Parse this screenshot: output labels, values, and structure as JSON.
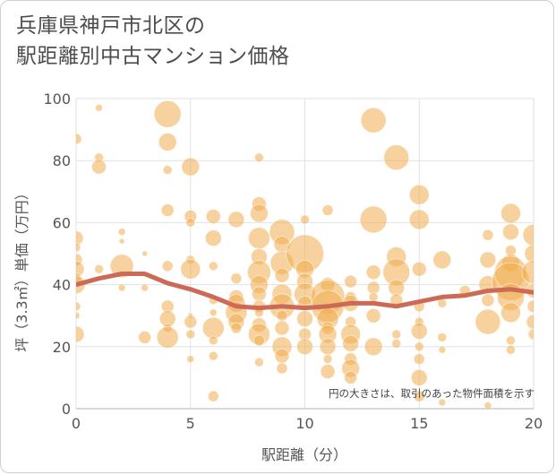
{
  "title_line1": "兵庫県神戸市北区の",
  "title_line2": "駅距離別中古マンション価格",
  "colors": {
    "bubble": "#f0ad4e",
    "trend": "#cd6a57",
    "grid": "#dde3ea",
    "background": "#ffffff"
  },
  "chart_data": {
    "type": "scatter",
    "xlabel": "駅距離（分）",
    "ylabel": "坪（3.3㎡）単価（万円）",
    "xlim": [
      0,
      20
    ],
    "ylim": [
      0,
      100
    ],
    "xticks": [
      0,
      5,
      10,
      15,
      20
    ],
    "yticks": [
      0,
      20,
      40,
      60,
      80,
      100
    ],
    "grid": true,
    "annotation": "円の大きさは、取引のあった物件面積を示す",
    "trend": {
      "x": [
        0,
        1,
        2,
        3,
        4,
        5,
        6,
        7,
        8,
        9,
        10,
        11,
        12,
        13,
        14,
        15,
        16,
        17,
        18,
        19,
        20
      ],
      "y": [
        40,
        42,
        43.5,
        43.5,
        40.5,
        38.5,
        36,
        33,
        32.5,
        33,
        32.5,
        33,
        34,
        34,
        33,
        34.5,
        36,
        36.5,
        38,
        38.5,
        37.5
      ]
    },
    "points": [
      {
        "x": 0,
        "y": 87,
        "s": 6
      },
      {
        "x": 0,
        "y": 55,
        "s": 8
      },
      {
        "x": 0,
        "y": 52,
        "s": 5
      },
      {
        "x": 0,
        "y": 48,
        "s": 7
      },
      {
        "x": 0,
        "y": 45,
        "s": 9
      },
      {
        "x": 0,
        "y": 42,
        "s": 6
      },
      {
        "x": 0,
        "y": 40,
        "s": 10
      },
      {
        "x": 0,
        "y": 33,
        "s": 5
      },
      {
        "x": 0,
        "y": 30,
        "s": 4
      },
      {
        "x": 0,
        "y": 24,
        "s": 9
      },
      {
        "x": 1,
        "y": 97,
        "s": 4
      },
      {
        "x": 1,
        "y": 81,
        "s": 5
      },
      {
        "x": 1,
        "y": 78,
        "s": 8
      },
      {
        "x": 1,
        "y": 45,
        "s": 5
      },
      {
        "x": 2,
        "y": 57,
        "s": 4
      },
      {
        "x": 2,
        "y": 54,
        "s": 3
      },
      {
        "x": 2,
        "y": 46,
        "s": 13
      },
      {
        "x": 2,
        "y": 39,
        "s": 4
      },
      {
        "x": 3,
        "y": 50,
        "s": 3
      },
      {
        "x": 3,
        "y": 39,
        "s": 4
      },
      {
        "x": 3,
        "y": 23,
        "s": 7
      },
      {
        "x": 4,
        "y": 95,
        "s": 15
      },
      {
        "x": 4,
        "y": 86,
        "s": 10
      },
      {
        "x": 4,
        "y": 77,
        "s": 5
      },
      {
        "x": 4,
        "y": 64,
        "s": 7
      },
      {
        "x": 4,
        "y": 46,
        "s": 6
      },
      {
        "x": 4,
        "y": 33,
        "s": 7
      },
      {
        "x": 4,
        "y": 29,
        "s": 9
      },
      {
        "x": 4,
        "y": 26,
        "s": 5
      },
      {
        "x": 4,
        "y": 23,
        "s": 12
      },
      {
        "x": 5,
        "y": 78,
        "s": 10
      },
      {
        "x": 5,
        "y": 62,
        "s": 7
      },
      {
        "x": 5,
        "y": 60,
        "s": 5
      },
      {
        "x": 5,
        "y": 48,
        "s": 5
      },
      {
        "x": 5,
        "y": 45,
        "s": 11
      },
      {
        "x": 5,
        "y": 30,
        "s": 3
      },
      {
        "x": 5,
        "y": 28,
        "s": 7
      },
      {
        "x": 5,
        "y": 24,
        "s": 5
      },
      {
        "x": 5,
        "y": 16,
        "s": 4
      },
      {
        "x": 6,
        "y": 62,
        "s": 8
      },
      {
        "x": 6,
        "y": 55,
        "s": 9
      },
      {
        "x": 6,
        "y": 46,
        "s": 5
      },
      {
        "x": 6,
        "y": 35,
        "s": 5
      },
      {
        "x": 6,
        "y": 31,
        "s": 4
      },
      {
        "x": 6,
        "y": 26,
        "s": 12
      },
      {
        "x": 6,
        "y": 22,
        "s": 5
      },
      {
        "x": 6,
        "y": 17,
        "s": 5
      },
      {
        "x": 6,
        "y": 4,
        "s": 6
      },
      {
        "x": 7,
        "y": 61,
        "s": 9
      },
      {
        "x": 7,
        "y": 42,
        "s": 6
      },
      {
        "x": 7,
        "y": 36,
        "s": 8
      },
      {
        "x": 7,
        "y": 34,
        "s": 10
      },
      {
        "x": 7,
        "y": 31,
        "s": 12
      },
      {
        "x": 7,
        "y": 28,
        "s": 9
      },
      {
        "x": 7,
        "y": 26,
        "s": 6
      },
      {
        "x": 8,
        "y": 81,
        "s": 5
      },
      {
        "x": 8,
        "y": 66,
        "s": 8
      },
      {
        "x": 8,
        "y": 63,
        "s": 10
      },
      {
        "x": 8,
        "y": 55,
        "s": 12
      },
      {
        "x": 8,
        "y": 49,
        "s": 9
      },
      {
        "x": 8,
        "y": 44,
        "s": 13
      },
      {
        "x": 8,
        "y": 40,
        "s": 10
      },
      {
        "x": 8,
        "y": 37,
        "s": 8
      },
      {
        "x": 8,
        "y": 33,
        "s": 7
      },
      {
        "x": 8,
        "y": 31,
        "s": 5
      },
      {
        "x": 8,
        "y": 27,
        "s": 8
      },
      {
        "x": 8,
        "y": 24,
        "s": 12
      },
      {
        "x": 8,
        "y": 22,
        "s": 6
      },
      {
        "x": 8,
        "y": 15,
        "s": 5
      },
      {
        "x": 9,
        "y": 57,
        "s": 14
      },
      {
        "x": 9,
        "y": 53,
        "s": 9
      },
      {
        "x": 9,
        "y": 47,
        "s": 13
      },
      {
        "x": 9,
        "y": 43,
        "s": 8
      },
      {
        "x": 9,
        "y": 37,
        "s": 11
      },
      {
        "x": 9,
        "y": 33,
        "s": 14
      },
      {
        "x": 9,
        "y": 30,
        "s": 6
      },
      {
        "x": 9,
        "y": 26,
        "s": 8
      },
      {
        "x": 9,
        "y": 20,
        "s": 11
      },
      {
        "x": 9,
        "y": 17,
        "s": 8
      },
      {
        "x": 9,
        "y": 13,
        "s": 6
      },
      {
        "x": 10,
        "y": 61,
        "s": 5
      },
      {
        "x": 10,
        "y": 50,
        "s": 21
      },
      {
        "x": 10,
        "y": 45,
        "s": 10
      },
      {
        "x": 10,
        "y": 41,
        "s": 9
      },
      {
        "x": 10,
        "y": 37,
        "s": 12
      },
      {
        "x": 10,
        "y": 34,
        "s": 8
      },
      {
        "x": 10,
        "y": 29,
        "s": 9
      },
      {
        "x": 10,
        "y": 24,
        "s": 7
      },
      {
        "x": 10,
        "y": 20,
        "s": 9
      },
      {
        "x": 11,
        "y": 64,
        "s": 6
      },
      {
        "x": 11,
        "y": 40,
        "s": 8
      },
      {
        "x": 11,
        "y": 36,
        "s": 19
      },
      {
        "x": 11,
        "y": 33,
        "s": 18
      },
      {
        "x": 11,
        "y": 29,
        "s": 12
      },
      {
        "x": 11,
        "y": 26,
        "s": 7
      },
      {
        "x": 11,
        "y": 24,
        "s": 10
      },
      {
        "x": 11,
        "y": 20,
        "s": 9
      },
      {
        "x": 11,
        "y": 16,
        "s": 5
      },
      {
        "x": 11,
        "y": 12,
        "s": 8
      },
      {
        "x": 12,
        "y": 41,
        "s": 7
      },
      {
        "x": 12,
        "y": 36,
        "s": 6
      },
      {
        "x": 12,
        "y": 34,
        "s": 9
      },
      {
        "x": 12,
        "y": 28,
        "s": 6
      },
      {
        "x": 12,
        "y": 24,
        "s": 11
      },
      {
        "x": 12,
        "y": 21,
        "s": 9
      },
      {
        "x": 12,
        "y": 16,
        "s": 7
      },
      {
        "x": 12,
        "y": 13,
        "s": 10
      },
      {
        "x": 12,
        "y": 10,
        "s": 7
      },
      {
        "x": 13,
        "y": 93,
        "s": 14
      },
      {
        "x": 13,
        "y": 61,
        "s": 15
      },
      {
        "x": 13,
        "y": 44,
        "s": 8
      },
      {
        "x": 13,
        "y": 39,
        "s": 7
      },
      {
        "x": 13,
        "y": 36,
        "s": 5
      },
      {
        "x": 13,
        "y": 30,
        "s": 8
      },
      {
        "x": 13,
        "y": 20,
        "s": 10
      },
      {
        "x": 14,
        "y": 81,
        "s": 14
      },
      {
        "x": 14,
        "y": 49,
        "s": 11
      },
      {
        "x": 14,
        "y": 44,
        "s": 15
      },
      {
        "x": 14,
        "y": 39,
        "s": 9
      },
      {
        "x": 14,
        "y": 35,
        "s": 7
      },
      {
        "x": 14,
        "y": 24,
        "s": 5
      },
      {
        "x": 14,
        "y": 21,
        "s": 5
      },
      {
        "x": 15,
        "y": 69,
        "s": 11
      },
      {
        "x": 15,
        "y": 61,
        "s": 11
      },
      {
        "x": 15,
        "y": 45,
        "s": 8
      },
      {
        "x": 15,
        "y": 33,
        "s": 6
      },
      {
        "x": 15,
        "y": 28,
        "s": 5
      },
      {
        "x": 15,
        "y": 25,
        "s": 9
      },
      {
        "x": 15,
        "y": 20,
        "s": 5
      },
      {
        "x": 15,
        "y": 16,
        "s": 6
      },
      {
        "x": 15,
        "y": 10,
        "s": 9
      },
      {
        "x": 15,
        "y": 4,
        "s": 6
      },
      {
        "x": 16,
        "y": 48,
        "s": 10
      },
      {
        "x": 16,
        "y": 34,
        "s": 5
      },
      {
        "x": 16,
        "y": 23,
        "s": 5
      },
      {
        "x": 16,
        "y": 19,
        "s": 4
      },
      {
        "x": 16,
        "y": 2,
        "s": 4
      },
      {
        "x": 17,
        "y": 38,
        "s": 6
      },
      {
        "x": 18,
        "y": 56,
        "s": 6
      },
      {
        "x": 18,
        "y": 48,
        "s": 9
      },
      {
        "x": 18,
        "y": 40,
        "s": 10
      },
      {
        "x": 18,
        "y": 35,
        "s": 7
      },
      {
        "x": 18,
        "y": 28,
        "s": 14
      },
      {
        "x": 18,
        "y": 1,
        "s": 4
      },
      {
        "x": 19,
        "y": 63,
        "s": 11
      },
      {
        "x": 19,
        "y": 57,
        "s": 9
      },
      {
        "x": 19,
        "y": 51,
        "s": 6
      },
      {
        "x": 19,
        "y": 47,
        "s": 10
      },
      {
        "x": 19,
        "y": 44,
        "s": 18
      },
      {
        "x": 19,
        "y": 41,
        "s": 21
      },
      {
        "x": 19,
        "y": 36,
        "s": 15
      },
      {
        "x": 19,
        "y": 31,
        "s": 11
      },
      {
        "x": 19,
        "y": 22,
        "s": 5
      },
      {
        "x": 19,
        "y": 19,
        "s": 5
      },
      {
        "x": 20,
        "y": 56,
        "s": 12
      },
      {
        "x": 20,
        "y": 50,
        "s": 10
      },
      {
        "x": 20,
        "y": 44,
        "s": 13
      },
      {
        "x": 20,
        "y": 38,
        "s": 8
      },
      {
        "x": 20,
        "y": 33,
        "s": 7
      },
      {
        "x": 20,
        "y": 28,
        "s": 8
      },
      {
        "x": 20,
        "y": 24,
        "s": 6
      }
    ]
  }
}
